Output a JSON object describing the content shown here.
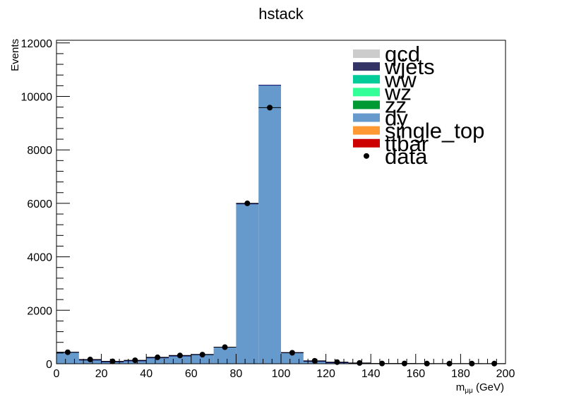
{
  "chart_data": {
    "type": "bar",
    "title": "hstack",
    "xlabel_main": "m",
    "xlabel_sub": "μμ",
    "xlabel_unit": " (GeV)",
    "ylabel": "Events",
    "xlim": [
      0,
      200
    ],
    "ylim": [
      0,
      12100
    ],
    "x_ticks": [
      0,
      20,
      40,
      60,
      80,
      100,
      120,
      140,
      160,
      180,
      200
    ],
    "y_ticks": [
      0,
      2000,
      4000,
      6000,
      8000,
      10000,
      12000
    ],
    "x_tick_labels": [
      "0",
      "20",
      "40",
      "60",
      "80",
      "100",
      "120",
      "140",
      "160",
      "180",
      "200"
    ],
    "y_tick_labels": [
      "0",
      "2000",
      "4000",
      "6000",
      "8000",
      "10000",
      "12000"
    ],
    "bin_edges": [
      0,
      10,
      20,
      30,
      40,
      50,
      60,
      70,
      80,
      90,
      100,
      110,
      120,
      130,
      140,
      150,
      160,
      170,
      180,
      190,
      200
    ],
    "grid": false,
    "legend_position": "top-right",
    "series": [
      {
        "name": "qcd",
        "color": "#cccccc",
        "style": "fill",
        "values": [
          0,
          0,
          0,
          0,
          0,
          0,
          0,
          0,
          0,
          0,
          0,
          0,
          0,
          0,
          0,
          0,
          0,
          0,
          0,
          0
        ]
      },
      {
        "name": "wjets",
        "color": "#333366",
        "style": "fill",
        "values": [
          0,
          0,
          0,
          0,
          0,
          0,
          0,
          0,
          0,
          0,
          0,
          0,
          0,
          0,
          0,
          0,
          0,
          0,
          0,
          0
        ]
      },
      {
        "name": "ww",
        "color": "#00cc99",
        "style": "fill",
        "values": [
          0,
          0,
          0,
          0,
          0,
          0,
          0,
          0,
          0,
          0,
          0,
          0,
          0,
          0,
          0,
          0,
          0,
          0,
          0,
          0
        ]
      },
      {
        "name": "wz",
        "color": "#33ff99",
        "style": "fill",
        "values": [
          0,
          0,
          0,
          0,
          0,
          0,
          0,
          0,
          0,
          0,
          0,
          0,
          0,
          0,
          0,
          0,
          0,
          0,
          0,
          0
        ]
      },
      {
        "name": "zz",
        "color": "#009933",
        "style": "fill",
        "values": [
          0,
          0,
          0,
          0,
          0,
          0,
          0,
          0,
          0,
          0,
          0,
          0,
          0,
          0,
          0,
          0,
          0,
          0,
          0,
          0
        ]
      },
      {
        "name": "dy",
        "color": "#6699cc",
        "style": "fill",
        "values": [
          430,
          140,
          70,
          110,
          220,
          290,
          350,
          620,
          5980,
          10420,
          420,
          90,
          40,
          15,
          8,
          5,
          3,
          2,
          2,
          1
        ]
      },
      {
        "name": "single_top",
        "color": "#ff9933",
        "style": "fill",
        "values": [
          0,
          0,
          0,
          0,
          0,
          0,
          0,
          0,
          0,
          0,
          0,
          0,
          0,
          0,
          0,
          0,
          0,
          0,
          0,
          0
        ]
      },
      {
        "name": "ttbar",
        "color": "#cc0000",
        "style": "fill",
        "values": [
          0,
          0,
          0,
          0,
          0,
          0,
          0,
          0,
          0,
          0,
          0,
          0,
          0,
          0,
          0,
          0,
          0,
          0,
          0,
          0
        ]
      },
      {
        "name": "data",
        "color": "#000000",
        "style": "marker",
        "values": [
          430,
          160,
          90,
          130,
          240,
          310,
          340,
          620,
          6000,
          9580,
          410,
          110,
          60,
          30,
          10,
          10,
          5,
          5,
          5,
          5
        ]
      }
    ]
  }
}
